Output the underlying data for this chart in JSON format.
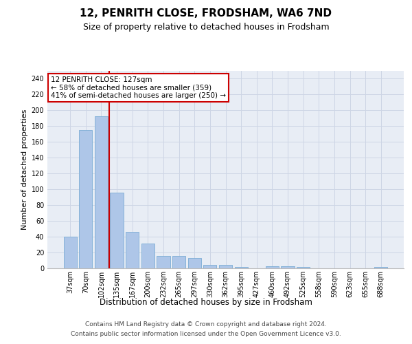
{
  "title": "12, PENRITH CLOSE, FRODSHAM, WA6 7ND",
  "subtitle": "Size of property relative to detached houses in Frodsham",
  "xlabel": "Distribution of detached houses by size in Frodsham",
  "ylabel": "Number of detached properties",
  "categories": [
    "37sqm",
    "70sqm",
    "102sqm",
    "135sqm",
    "167sqm",
    "200sqm",
    "232sqm",
    "265sqm",
    "297sqm",
    "330sqm",
    "362sqm",
    "395sqm",
    "427sqm",
    "460sqm",
    "492sqm",
    "525sqm",
    "558sqm",
    "590sqm",
    "623sqm",
    "655sqm",
    "688sqm"
  ],
  "values": [
    40,
    175,
    192,
    96,
    46,
    31,
    16,
    16,
    13,
    4,
    4,
    2,
    0,
    3,
    3,
    2,
    0,
    0,
    0,
    0,
    2
  ],
  "bar_color": "#aec6e8",
  "bar_edge_color": "#7aacd4",
  "vline_color": "#cc0000",
  "vline_x": 2.5,
  "annotation_text": "12 PENRITH CLOSE: 127sqm\n← 58% of detached houses are smaller (359)\n41% of semi-detached houses are larger (250) →",
  "annotation_box_facecolor": "#ffffff",
  "annotation_box_edgecolor": "#cc0000",
  "annotation_fontsize": 7.5,
  "title_fontsize": 11,
  "subtitle_fontsize": 9,
  "xlabel_fontsize": 8.5,
  "ylabel_fontsize": 8,
  "tick_fontsize": 7,
  "footer_line1": "Contains HM Land Registry data © Crown copyright and database right 2024.",
  "footer_line2": "Contains public sector information licensed under the Open Government Licence v3.0.",
  "footer_fontsize": 6.5,
  "ylim": [
    0,
    250
  ],
  "yticks": [
    0,
    20,
    40,
    60,
    80,
    100,
    120,
    140,
    160,
    180,
    200,
    220,
    240
  ],
  "grid_color": "#cdd5e5",
  "bg_color": "#e8edf5"
}
